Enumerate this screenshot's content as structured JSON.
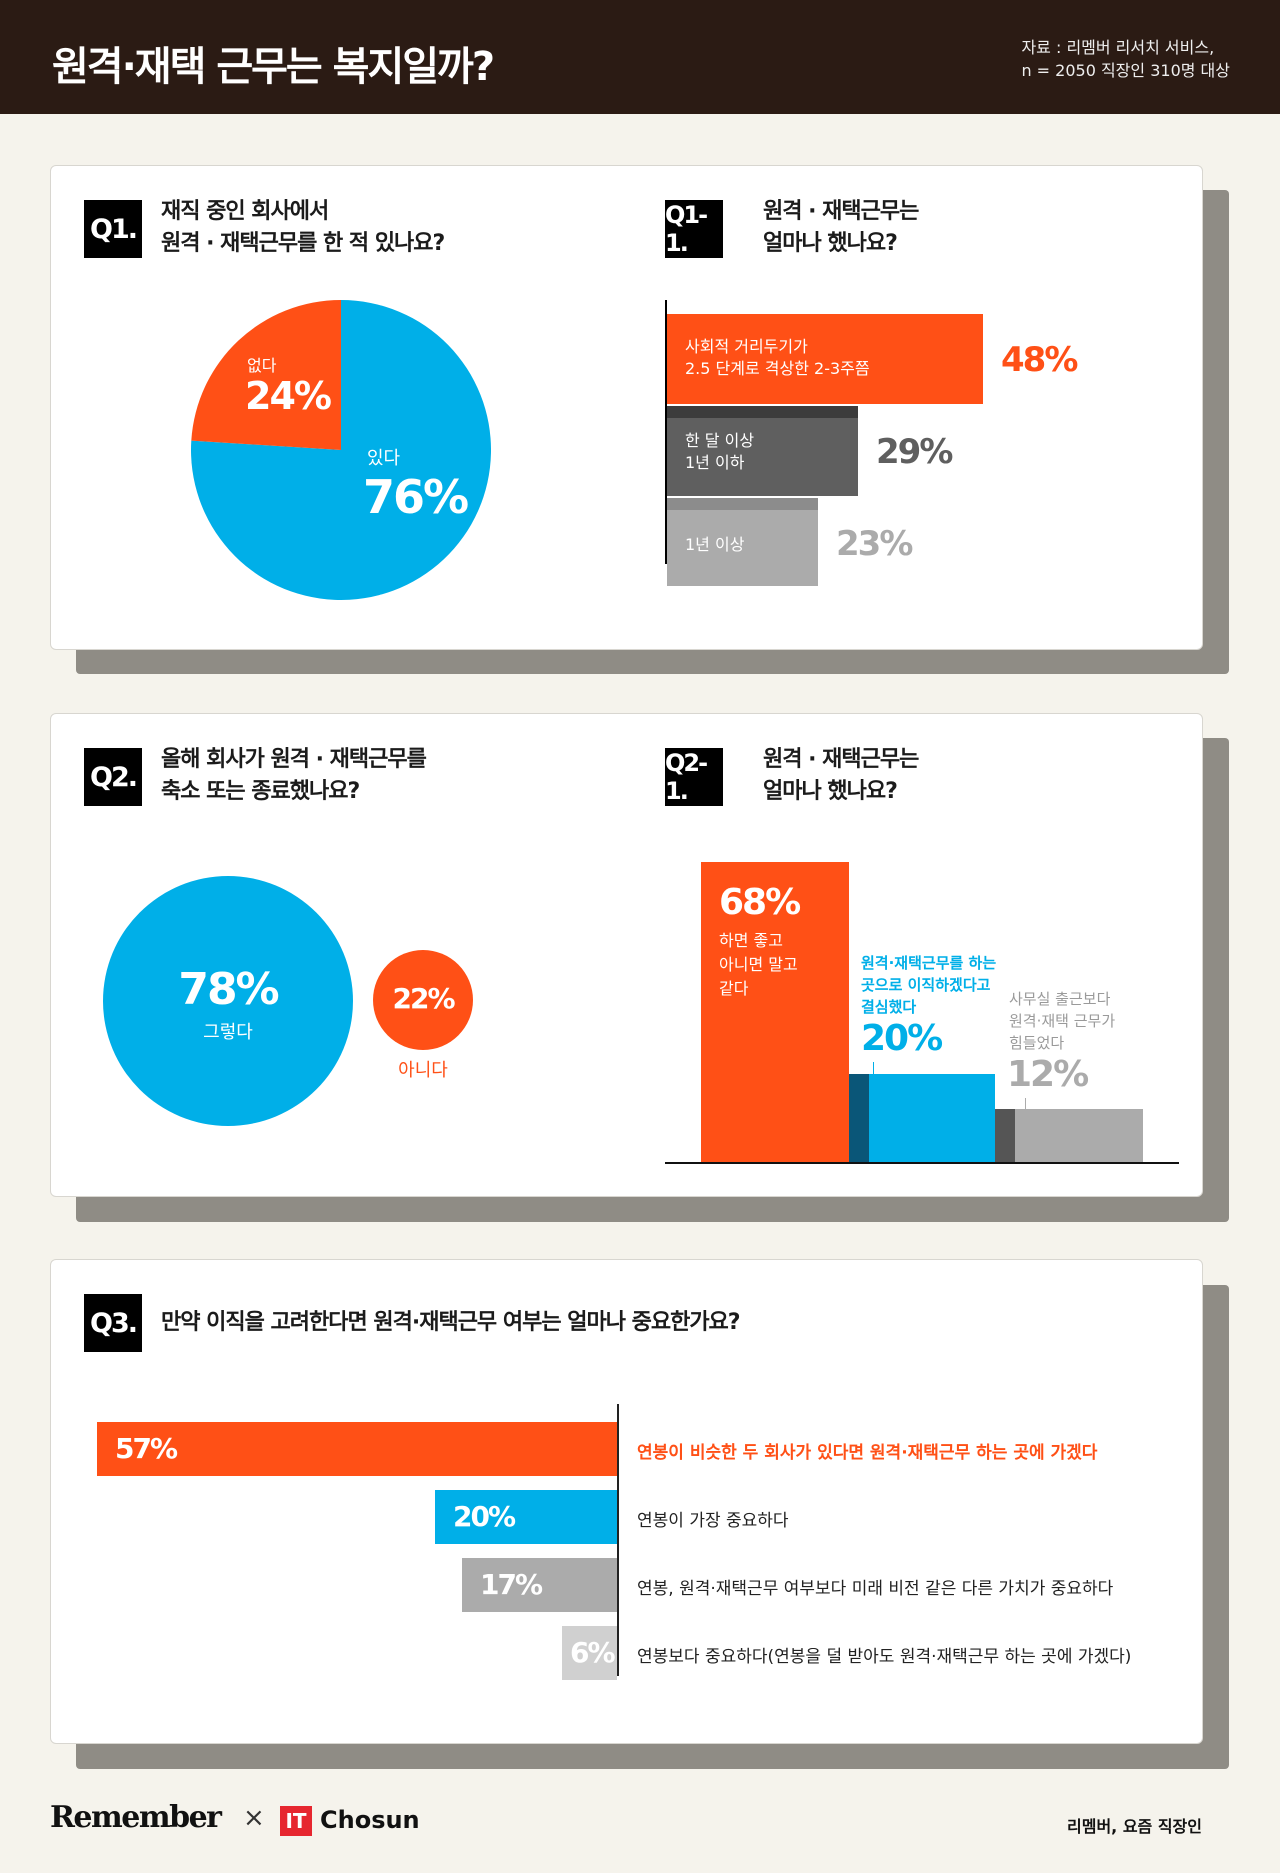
{
  "header": {
    "title": "원격·재택 근무는 복지일까?",
    "source_line1": "자료 : 리멤버 리서치 서비스,",
    "source_line2": "n = 2050 직장인 310명 대상"
  },
  "colors": {
    "orange": "#ff5016",
    "blue": "#00afe8",
    "dark_gray": "#5f5f5f",
    "light_gray": "#ababab",
    "pale_gray": "#d0d0d0",
    "dark_teal": "#0a5678",
    "header_bg": "#2b1b14"
  },
  "q1": {
    "label": "Q1.",
    "title_line1": "재직 중인 회사에서",
    "title_line2": "원격 · 재택근무를 한 적 있나요?",
    "no_label": "없다",
    "no_value": "24%",
    "yes_label": "있다",
    "yes_value": "76%"
  },
  "q1_1": {
    "label": "Q1-1.",
    "title_line1": "원격 · 재택근무는",
    "title_line2": "얼마나 했나요?",
    "bars": [
      {
        "line1": "사회적 거리두기가",
        "line2": "2.5 단계로 격상한 2-3주쯤",
        "value": "48%"
      },
      {
        "line1": "한 달 이상",
        "line2": "1년 이하",
        "value": "29%"
      },
      {
        "line1": "1년 이상",
        "line2": "",
        "value": "23%"
      }
    ]
  },
  "q2": {
    "label": "Q2.",
    "title_line1": "올해 회사가 원격 · 재택근무를",
    "title_line2": "축소 또는 종료했나요?",
    "yes_value": "78%",
    "yes_label": "그렇다",
    "no_value": "22%",
    "no_label": "아니다"
  },
  "q2_1": {
    "label": "Q2-1.",
    "title_line1": "원격 · 재택근무는",
    "title_line2": "얼마나 했나요?",
    "bar1": {
      "value": "68%",
      "line1": "하면 좋고",
      "line2": "아니면 말고",
      "line3": "같다"
    },
    "bar2": {
      "value": "20%",
      "line1": "원격·재택근무를 하는",
      "line2": "곳으로 이직하겠다고",
      "line3": "결심했다"
    },
    "bar3": {
      "value": "12%",
      "line1": "사무실 출근보다",
      "line2": "원격·재택 근무가",
      "line3": "힘들었다"
    }
  },
  "q3": {
    "label": "Q3.",
    "title": "만약 이직을 고려한다면 원격·재택근무 여부는 얼마나 중요한가요?",
    "rows": [
      {
        "value": "57%",
        "text": "연봉이 비슷한 두 회사가 있다면 원격·재택근무 하는 곳에 가겠다"
      },
      {
        "value": "20%",
        "text": "연봉이 가장 중요하다"
      },
      {
        "value": "17%",
        "text": "연봉, 원격·재택근무 여부보다 미래 비전 같은 다른 가치가 중요하다"
      },
      {
        "value": "6%",
        "text": "연봉보다 중요하다(연봉을 덜 받아도 원격·재택근무 하는 곳에 가겠다)"
      }
    ]
  },
  "footer": {
    "brand": "Remember",
    "times": "×",
    "it_mark": "IT",
    "partner": "Chosun",
    "right": "리멤버, 요즘 직장인"
  },
  "chart_data": [
    {
      "type": "pie",
      "title": "재직 중인 회사에서 원격 · 재택근무를 한 적 있나요?",
      "categories": [
        "있다",
        "없다"
      ],
      "values": [
        76,
        24
      ]
    },
    {
      "type": "bar",
      "title": "원격 · 재택근무는 얼마나 했나요?",
      "categories": [
        "사회적 거리두기가 2.5 단계로 격상한 2-3주쯤",
        "한 달 이상 1년 이하",
        "1년 이상"
      ],
      "values": [
        48,
        29,
        23
      ],
      "orientation": "horizontal"
    },
    {
      "type": "bubble",
      "title": "올해 회사가 원격 · 재택근무를 축소 또는 종료했나요?",
      "categories": [
        "그렇다",
        "아니다"
      ],
      "values": [
        78,
        22
      ]
    },
    {
      "type": "bar",
      "title": "원격 · 재택근무는 얼마나 했나요?",
      "categories": [
        "하면 좋고 아니면 말고 같다",
        "원격·재택근무를 하는 곳으로 이직하겠다고 결심했다",
        "사무실 출근보다 원격·재택 근무가 힘들었다"
      ],
      "values": [
        68,
        20,
        12
      ],
      "orientation": "vertical"
    },
    {
      "type": "bar",
      "title": "만약 이직을 고려한다면 원격·재택근무 여부는 얼마나 중요한가요?",
      "categories": [
        "연봉이 비슷한 두 회사가 있다면 원격·재택근무 하는 곳에 가겠다",
        "연봉이 가장 중요하다",
        "연봉, 원격·재택근무 여부보다 미래 비전 같은 다른 가치가 중요하다",
        "연봉보다 중요하다(연봉을 덜 받아도 원격·재택근무 하는 곳에 가겠다)"
      ],
      "values": [
        57,
        20,
        17,
        6
      ],
      "orientation": "horizontal"
    }
  ]
}
